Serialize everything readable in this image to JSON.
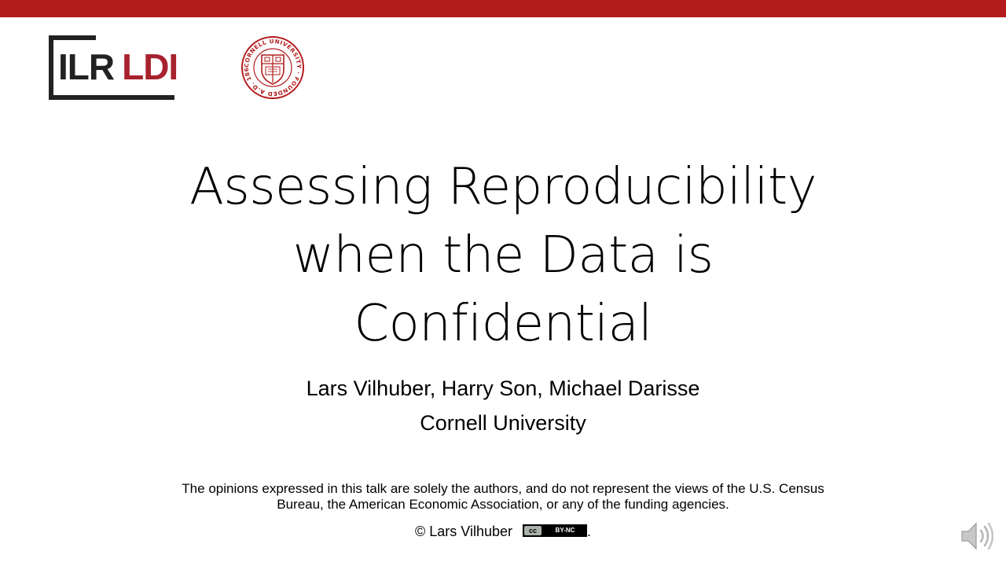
{
  "colors": {
    "top_bar": "#b31b1b",
    "ldi_red": "#a8222e",
    "cornell_red": "#b31b1b",
    "logo_dark": "#222222"
  },
  "logo": {
    "ilr": "ILR",
    "ldi": "LDI"
  },
  "seal": {
    "ring_text": "CORNELL UNIVERSITY · FOUNDED A.D. 1865"
  },
  "slide": {
    "title_line1": "Assessing Reproducibility",
    "title_line2": "when the Data is",
    "title_line3": "Confidential",
    "authors": "Lars Vilhuber, Harry Son, Michael Darisse",
    "affiliation": "Cornell University",
    "disclaimer_line1": "The opinions expressed in this talk are solely the authors, and do not represent the views of the U.S. Census",
    "disclaimer_line2": "Bureau, the American Economic Association, or any of the funding agencies.",
    "copyright": "© Lars Vilhuber",
    "license_left": "cc",
    "license_right": "BY-NC",
    "license_period": "."
  },
  "icons": {
    "speaker": "speaker-icon"
  }
}
